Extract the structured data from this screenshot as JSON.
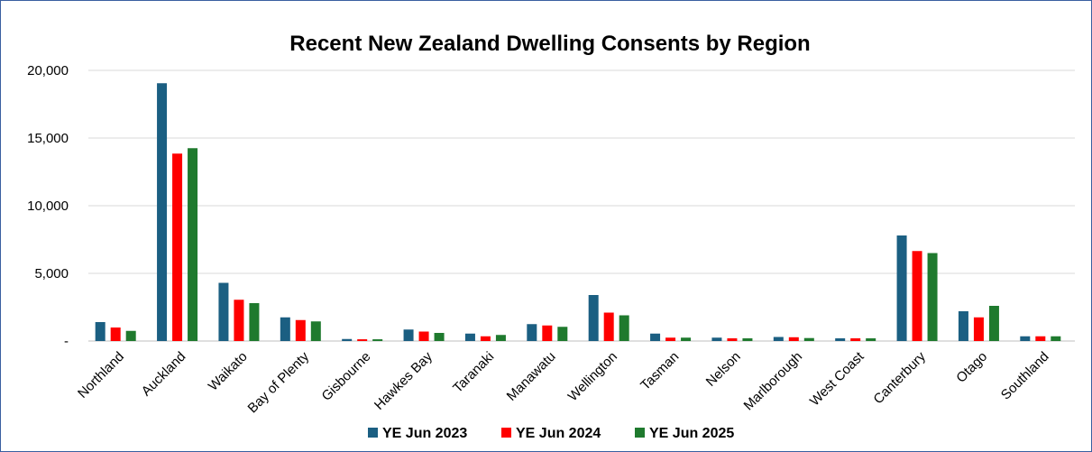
{
  "chart_data": {
    "type": "bar",
    "title": "Recent New Zealand Dwelling Consents by Region",
    "xlabel": "",
    "ylabel": "",
    "ylim": [
      0,
      20000
    ],
    "yticks": [
      0,
      5000,
      10000,
      15000,
      20000
    ],
    "ytick_labels": [
      "-",
      "5,000",
      "10,000",
      "15,000",
      "20,000"
    ],
    "grid": true,
    "legend_position": "bottom",
    "categories": [
      "Northland",
      "Auckland",
      "Waikato",
      "Bay of Plenty",
      "Gisbourne",
      "Hawkes Bay",
      "Taranaki",
      "Manawatu",
      "Wellington",
      "Tasman",
      "Nelson",
      "Marlborough",
      "West Coast",
      "Canterbury",
      "Otago",
      "Southland"
    ],
    "series": [
      {
        "name": "YE Jun 2023",
        "color": "#1b5f82",
        "values": [
          1400,
          19050,
          4300,
          1750,
          150,
          850,
          550,
          1250,
          3400,
          550,
          250,
          300,
          200,
          7800,
          2200,
          350
        ]
      },
      {
        "name": "YE Jun 2024",
        "color": "#ff0000",
        "values": [
          1000,
          13850,
          3050,
          1550,
          130,
          700,
          350,
          1150,
          2100,
          250,
          200,
          280,
          200,
          6650,
          1750,
          350
        ]
      },
      {
        "name": "YE Jun 2025",
        "color": "#1f7a2e",
        "values": [
          750,
          14250,
          2800,
          1450,
          130,
          600,
          450,
          1050,
          1900,
          250,
          200,
          220,
          200,
          6500,
          2600,
          350
        ]
      }
    ]
  }
}
